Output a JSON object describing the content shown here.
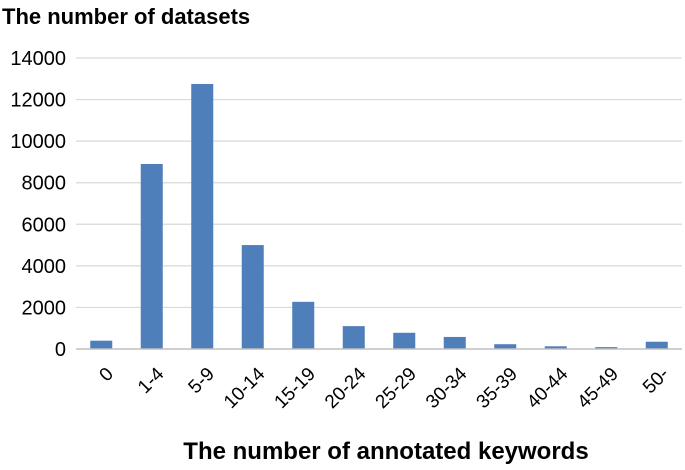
{
  "chart_data": {
    "type": "bar",
    "ylabel": "The number of datasets",
    "xlabel": "The number of annotated keywords",
    "categories": [
      "0",
      "1-4",
      "5-9",
      "10-14",
      "15-19",
      "20-24",
      "25-29",
      "30-34",
      "35-39",
      "40-44",
      "45-49",
      "50-"
    ],
    "values": [
      400,
      8900,
      12750,
      5000,
      2270,
      1100,
      780,
      580,
      230,
      130,
      90,
      350
    ],
    "ylim": [
      0,
      14000
    ],
    "yticks": [
      0,
      2000,
      4000,
      6000,
      8000,
      10000,
      12000,
      14000
    ],
    "grid": true,
    "bar_color": "#4f7fbb"
  }
}
